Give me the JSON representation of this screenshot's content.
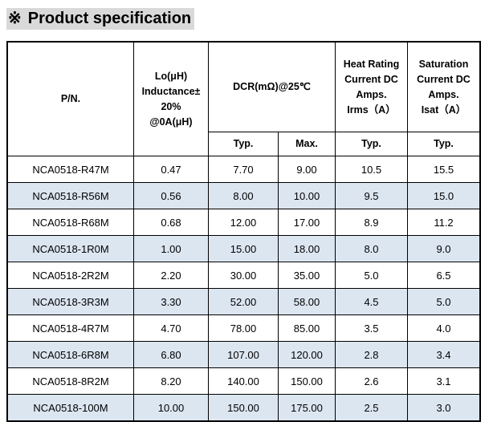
{
  "title": {
    "mark": "※",
    "text": "Product specification"
  },
  "table": {
    "headers": {
      "pn": "P/N.",
      "lo": [
        "Lo(μH)",
        "Inductance±",
        "20%",
        "@0A(μH)"
      ],
      "dcr": "DCR(mΩ)@25℃",
      "heat": [
        "Heat Rating",
        "Current DC",
        "Amps.",
        "Irms（A）"
      ],
      "sat": [
        "Saturation",
        "Current DC",
        "Amps.",
        "Isat（A）"
      ],
      "dcr_typ": "Typ.",
      "dcr_max": "Max.",
      "heat_typ": "Typ.",
      "sat_typ": "Typ."
    },
    "rows": [
      {
        "pn": "NCA0518-R47M",
        "lo": "0.47",
        "dcr_typ": "7.70",
        "dcr_max": "9.00",
        "irms": "10.5",
        "isat": "15.5"
      },
      {
        "pn": "NCA0518-R56M",
        "lo": "0.56",
        "dcr_typ": "8.00",
        "dcr_max": "10.00",
        "irms": "9.5",
        "isat": "15.0"
      },
      {
        "pn": "NCA0518-R68M",
        "lo": "0.68",
        "dcr_typ": "12.00",
        "dcr_max": "17.00",
        "irms": "8.9",
        "isat": "11.2"
      },
      {
        "pn": "NCA0518-1R0M",
        "lo": "1.00",
        "dcr_typ": "15.00",
        "dcr_max": "18.00",
        "irms": "8.0",
        "isat": "9.0"
      },
      {
        "pn": "NCA0518-2R2M",
        "lo": "2.20",
        "dcr_typ": "30.00",
        "dcr_max": "35.00",
        "irms": "5.0",
        "isat": "6.5"
      },
      {
        "pn": "NCA0518-3R3M",
        "lo": "3.30",
        "dcr_typ": "52.00",
        "dcr_max": "58.00",
        "irms": "4.5",
        "isat": "5.0"
      },
      {
        "pn": "NCA0518-4R7M",
        "lo": "4.70",
        "dcr_typ": "78.00",
        "dcr_max": "85.00",
        "irms": "3.5",
        "isat": "4.0"
      },
      {
        "pn": "NCA0518-6R8M",
        "lo": "6.80",
        "dcr_typ": "107.00",
        "dcr_max": "120.00",
        "irms": "2.8",
        "isat": "3.4"
      },
      {
        "pn": "NCA0518-8R2M",
        "lo": "8.20",
        "dcr_typ": "140.00",
        "dcr_max": "150.00",
        "irms": "2.6",
        "isat": "3.1"
      },
      {
        "pn": "NCA0518-100M",
        "lo": "10.00",
        "dcr_typ": "150.00",
        "dcr_max": "175.00",
        "irms": "2.5",
        "isat": "3.0"
      }
    ],
    "shade_color": "#dce6f1"
  }
}
